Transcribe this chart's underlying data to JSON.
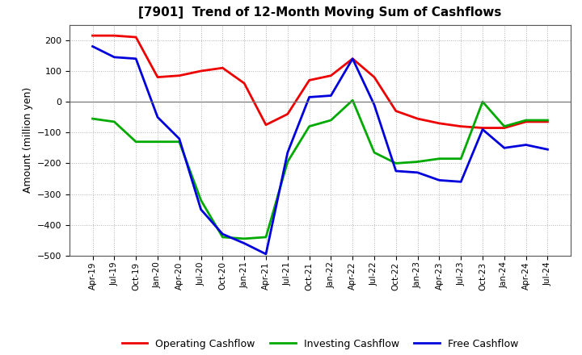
{
  "title": "[7901]  Trend of 12-Month Moving Sum of Cashflows",
  "ylabel": "Amount (million yen)",
  "ylim": [
    -500,
    250
  ],
  "yticks": [
    -500,
    -400,
    -300,
    -200,
    -100,
    0,
    100,
    200
  ],
  "background_color": "#ffffff",
  "grid_color": "#aaaaaa",
  "labels": [
    "Apr-19",
    "Jul-19",
    "Oct-19",
    "Jan-20",
    "Apr-20",
    "Jul-20",
    "Oct-20",
    "Jan-21",
    "Apr-21",
    "Jul-21",
    "Oct-21",
    "Jan-22",
    "Apr-22",
    "Jul-22",
    "Oct-22",
    "Jan-23",
    "Apr-23",
    "Jul-23",
    "Oct-23",
    "Jan-24",
    "Apr-24",
    "Jul-24"
  ],
  "operating": [
    215,
    215,
    210,
    80,
    85,
    100,
    110,
    60,
    -75,
    -40,
    70,
    85,
    140,
    80,
    -30,
    -55,
    -70,
    -80,
    -85,
    -85,
    -65,
    -65
  ],
  "investing": [
    -55,
    -65,
    -130,
    -130,
    -130,
    -320,
    -440,
    -445,
    -440,
    -195,
    -80,
    -60,
    5,
    -165,
    -200,
    -195,
    -185,
    -185,
    0,
    -80,
    -60,
    -60
  ],
  "free": [
    180,
    145,
    140,
    -50,
    -120,
    -350,
    -430,
    -460,
    -495,
    -165,
    15,
    20,
    140,
    -10,
    -225,
    -230,
    -255,
    -260,
    -90,
    -150,
    -140,
    -155
  ],
  "operating_color": "#ee0000",
  "investing_color": "#00aa00",
  "free_color": "#0000dd",
  "legend_labels": [
    "Operating Cashflow",
    "Investing Cashflow",
    "Free Cashflow"
  ]
}
